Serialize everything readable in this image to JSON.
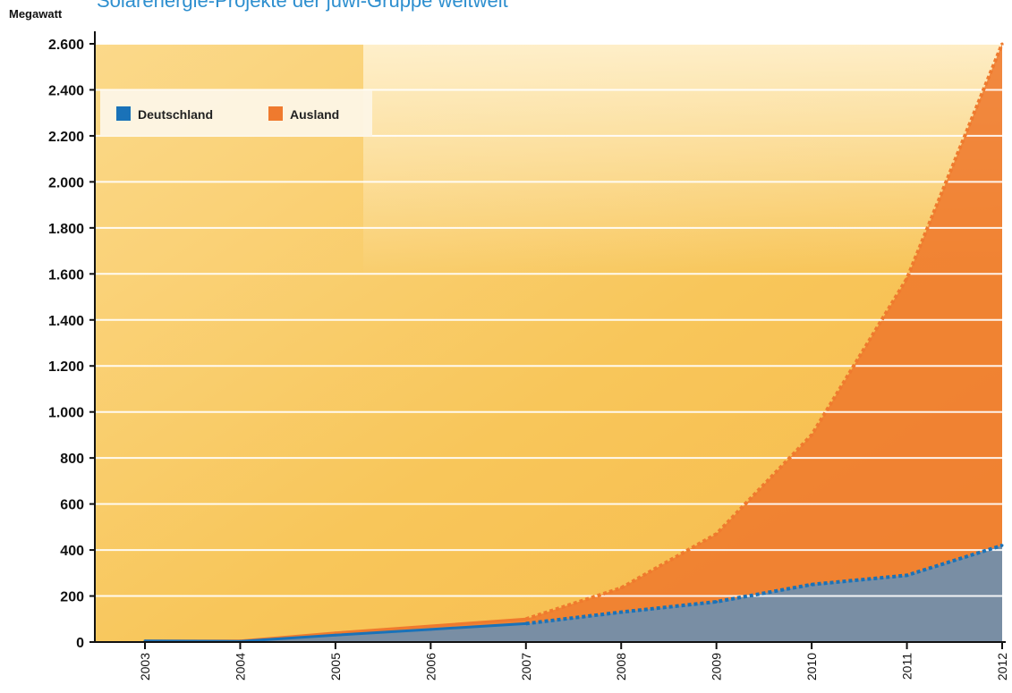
{
  "header": {
    "title": "Solarenergie-Projekte der juwi-Gruppe weltweit",
    "unit_label": "Megawatt"
  },
  "chart_data": {
    "type": "area",
    "title": "Solarenergie-Projekte der juwi-Gruppe weltweit",
    "ylabel": "Megawatt",
    "xlabel": "",
    "x": [
      "2003",
      "2004",
      "2005",
      "2006",
      "2007",
      "2008",
      "2009",
      "2010",
      "2011",
      "2012"
    ],
    "ylim": [
      0,
      2600
    ],
    "yticks": [
      0,
      200,
      400,
      600,
      800,
      1000,
      1200,
      1400,
      1600,
      1800,
      2000,
      2200,
      2400,
      2600
    ],
    "ytick_labels": [
      "0",
      "200",
      "400",
      "600",
      "800",
      "1.000",
      "1.200",
      "1.400",
      "1.600",
      "1.800",
      "2.000",
      "2.200",
      "2.400",
      "2.600"
    ],
    "stacked_totals": true,
    "solid_through_index": 4,
    "series": [
      {
        "name": "Deutschland",
        "color": "#1a72b8",
        "values": [
          5,
          3,
          30,
          55,
          80,
          130,
          175,
          250,
          290,
          420
        ]
      },
      {
        "name": "Ausland",
        "color": "#ef7a2e",
        "values": [
          5,
          5,
          40,
          70,
          100,
          235,
          470,
          900,
          1580,
          2600
        ]
      }
    ],
    "legend": {
      "placement": "top-left"
    },
    "grid": true,
    "background_colors": {
      "panel": "#f8c65a",
      "gridline": "#ffffff"
    }
  }
}
